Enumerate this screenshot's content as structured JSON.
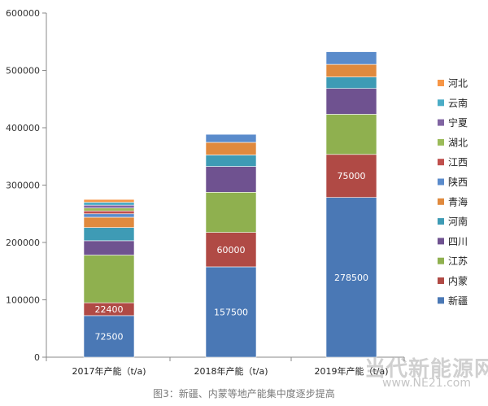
{
  "chart_data": {
    "type": "bar",
    "stacked": true,
    "categories": [
      "2017年产能（t/a)",
      "2018年产能（t/a)",
      "2019年产能（t/a)"
    ],
    "ylim": [
      0,
      600000
    ],
    "yticks": [
      0,
      100000,
      200000,
      300000,
      400000,
      500000,
      600000
    ],
    "grid": false,
    "legend_position": "right",
    "series": [
      {
        "name": "新疆",
        "color": "#4a78b5",
        "values": [
          72500,
          157500,
          278500
        ],
        "labels": [
          "72500",
          "157500",
          "278500"
        ]
      },
      {
        "name": "内蒙",
        "color": "#b04a45",
        "values": [
          22400,
          60000,
          75000
        ],
        "labels": [
          "22400",
          "60000",
          "75000"
        ]
      },
      {
        "name": "江苏",
        "color": "#8fb04f",
        "values": [
          83100,
          70000,
          70000
        ]
      },
      {
        "name": "四川",
        "color": "#6f5290",
        "values": [
          25000,
          45000,
          45000
        ]
      },
      {
        "name": "河南",
        "color": "#3e9bb5",
        "values": [
          23000,
          20000,
          20000
        ]
      },
      {
        "name": "青海",
        "color": "#e08a3e",
        "values": [
          18000,
          22000,
          22000
        ]
      },
      {
        "name": "陕西",
        "color": "#5a8bcb",
        "values": [
          6000,
          14000,
          22000
        ]
      },
      {
        "name": "江西",
        "color": "#c0504d",
        "values": [
          5000,
          0,
          0
        ]
      },
      {
        "name": "湖北",
        "color": "#9bbb59",
        "values": [
          5000,
          0,
          0
        ]
      },
      {
        "name": "宁夏",
        "color": "#8064a2",
        "values": [
          5000,
          0,
          0
        ]
      },
      {
        "name": "云南",
        "color": "#4bacc6",
        "values": [
          5000,
          0,
          0
        ]
      },
      {
        "name": "河北",
        "color": "#f79646",
        "values": [
          5000,
          0,
          0
        ]
      }
    ]
  },
  "caption": "图3：新疆、内蒙等地产能集中度逐步提高",
  "watermark": {
    "main": "当代新能源网",
    "sub": "www.NE21.com"
  }
}
